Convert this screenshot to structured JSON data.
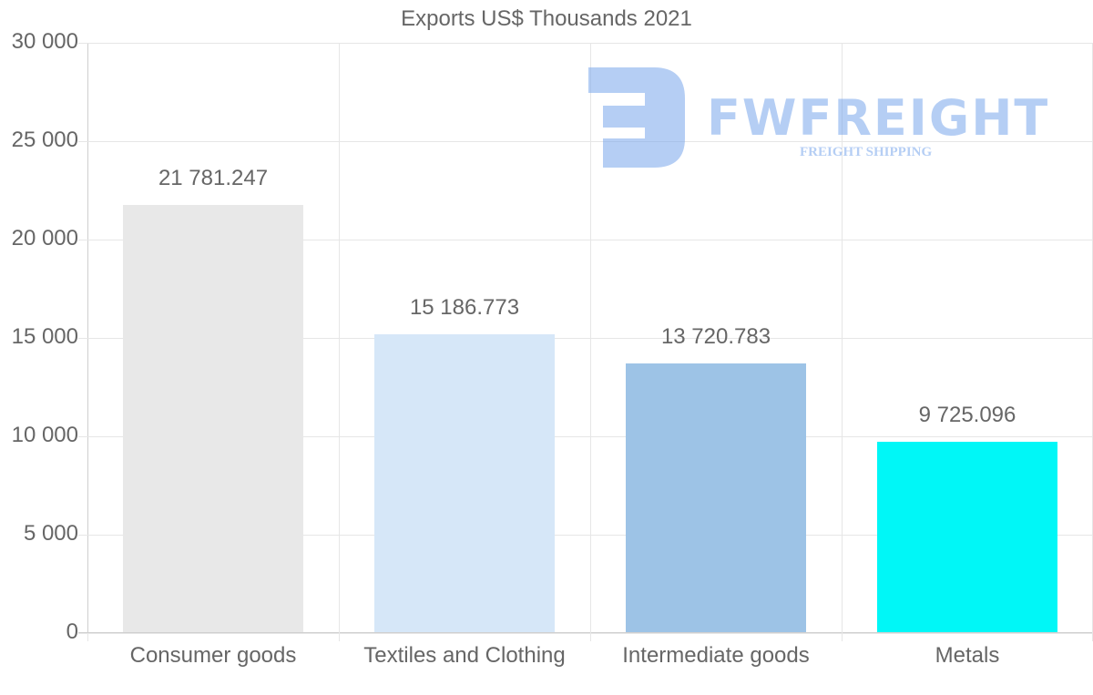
{
  "chart_data": {
    "type": "bar",
    "title": "Exports US$ Thousands 2021",
    "xlabel": "",
    "ylabel": "",
    "categories": [
      "Consumer goods",
      "Textiles and Clothing",
      "Intermediate goods",
      "Metals"
    ],
    "values": [
      21781.247,
      15186.773,
      13720.783,
      9725.096
    ],
    "value_labels": [
      "21 781.247",
      "15 186.773",
      "13 720.783",
      "9 725.096"
    ],
    "colors": [
      "#e8e8e8",
      "#d6e7f8",
      "#9dc3e6",
      "#00f7f7"
    ],
    "ylim": [
      0,
      30000
    ],
    "yticks": [
      0,
      5000,
      10000,
      15000,
      20000,
      25000,
      30000
    ],
    "ytick_labels": [
      "0",
      "5 000",
      "10 000",
      "15 000",
      "20 000",
      "25 000",
      "30 000"
    ],
    "grid": true,
    "legend": null
  },
  "watermark": {
    "brand": "FWFREIGHT",
    "tagline": "FREIGHT SHIPPING"
  }
}
